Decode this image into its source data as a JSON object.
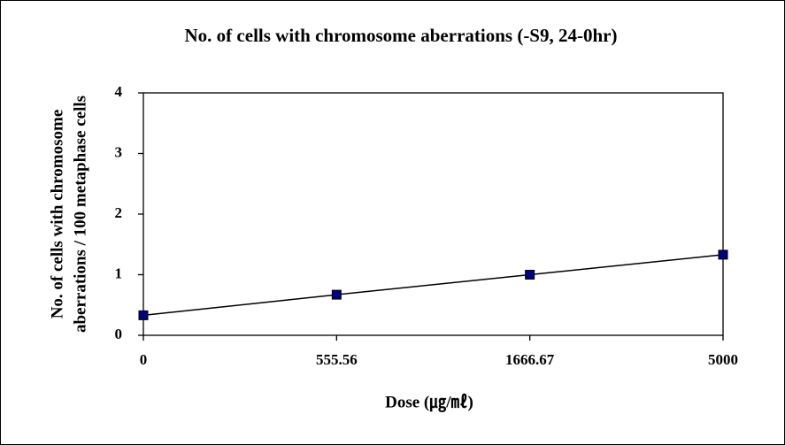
{
  "chart_data": {
    "type": "line",
    "title": "No. of cells with chromosome aberrations (-S9, 24-0hr)",
    "x_label": "Dose (㎍/㎖)",
    "y_label": [
      "No. of cells with chromosome",
      "aberrations / 100 metaphase cells"
    ],
    "categories": [
      "0",
      "555.56",
      "1666.67",
      "5000"
    ],
    "series": [
      {
        "name": "No. of cells with chromosome aberrations",
        "color": "#000080",
        "values": [
          0.33,
          0.67,
          1.0,
          1.33
        ]
      }
    ],
    "ylim": [
      0,
      4
    ],
    "yticks": [
      0,
      1,
      2,
      3,
      4
    ],
    "grid": false
  }
}
